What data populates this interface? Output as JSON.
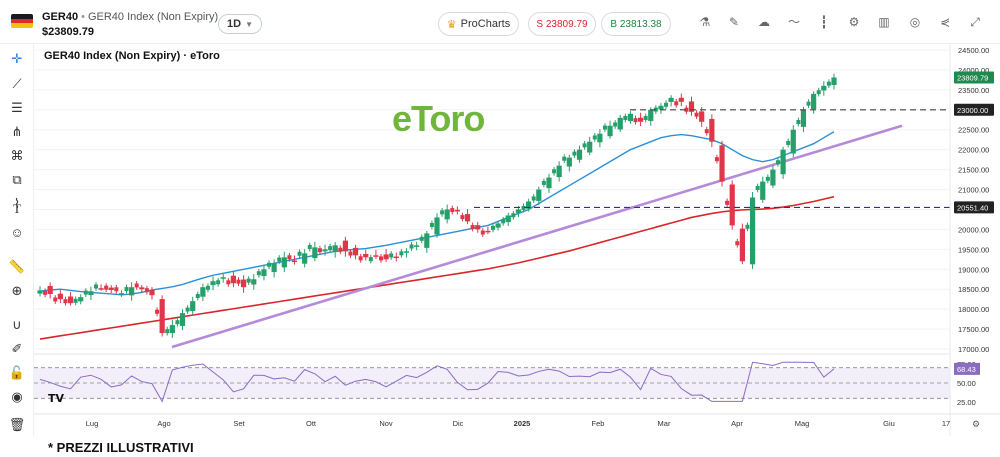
{
  "header": {
    "symbol": "GER40",
    "name": "GER40 Index (Non Expiry)",
    "price": "$23809.79",
    "interval": "1D",
    "prochart_label": "ProCharts",
    "sell_label": "S 23809.79",
    "buy_label": "B 23813.38"
  },
  "flag_colors": [
    "#1a1a1a",
    "#dd2a2a",
    "#f4c20d"
  ],
  "chart_title": "GER40 Index (Non Expiry) · eToro",
  "watermark": "eToro",
  "footer_note": "* PREZZI ILLUSTRATIVI",
  "colors": {
    "up": "#26a06a",
    "down": "#e0364a",
    "sma50": "#2d8fd6",
    "sma200": "#d8262b",
    "trendline": "#b58ad8",
    "rsi": "#8a6cc0",
    "dash": "#555577"
  },
  "chart_data": {
    "type": "candlestick",
    "price_axis": {
      "min": 17000,
      "max": 24500,
      "ticks": [
        "24500.00",
        "24000.00",
        "23500.00",
        "23000.00",
        "22500.00",
        "22000.00",
        "21500.00",
        "21000.00",
        "20500.00",
        "20000.00",
        "19500.00",
        "19000.00",
        "18500.00",
        "18000.00",
        "17500.00",
        "17000.00"
      ]
    },
    "price_labels": [
      {
        "label": "23809.79",
        "value": 23809.79,
        "bg": "#1f8a50"
      },
      {
        "label": "23000.00",
        "value": 23000,
        "bg": "#222"
      },
      {
        "label": "20551.40",
        "value": 20551.4,
        "bg": "#222"
      }
    ],
    "hlines": [
      {
        "value": 23000,
        "color": "#444444"
      },
      {
        "value": 20551.4,
        "color": "#3a2a8a"
      }
    ],
    "x_labels": [
      "Lug",
      "Ago",
      "Set",
      "Ott",
      "Nov",
      "Dic",
      "2025",
      "Feb",
      "Mar",
      "Apr",
      "Mag",
      "Giu",
      "17"
    ],
    "series_points": {
      "close": [
        18470,
        18380,
        18250,
        18150,
        18300,
        18450,
        18520,
        18480,
        18400,
        18550,
        18500,
        18350,
        17400,
        17600,
        17900,
        18200,
        18550,
        18700,
        18800,
        18650,
        18550,
        18750,
        19000,
        19150,
        19300,
        19200,
        19400,
        19550,
        19500,
        19600,
        19450,
        19350,
        19300,
        19350,
        19250,
        19300,
        19450,
        19600,
        19900,
        20300,
        20500,
        20450,
        20200,
        20000,
        19950,
        20150,
        20350,
        20500,
        20700,
        21000,
        21300,
        21600,
        21800,
        22000,
        22200,
        22400,
        22600,
        22800,
        22900,
        22700,
        23000,
        23100,
        23300,
        23200,
        22950,
        22700,
        22200,
        21200,
        20100,
        19200,
        20800,
        21200,
        21500,
        22000,
        22500,
        23000,
        23400,
        23600,
        23809.79
      ],
      "sma50": [
        18450,
        18480,
        18500,
        18470,
        18440,
        18420,
        18400,
        18380,
        18360,
        18380,
        18420,
        18480,
        18520,
        18560,
        18620,
        18700,
        18780,
        18850,
        18900,
        18950,
        19000,
        19050,
        19100,
        19150,
        19200,
        19250,
        19300,
        19350,
        19400,
        19450,
        19480,
        19500,
        19520,
        19560,
        19600,
        19650,
        19700,
        19750,
        19800,
        19850,
        19900,
        19950,
        20000,
        20050,
        20100,
        20200,
        20300,
        20400,
        20500,
        20650,
        20800,
        20950,
        21100,
        21250,
        21400,
        21550,
        21700,
        21850,
        22000,
        22100,
        22200,
        22300,
        22350,
        22380,
        22350,
        22300,
        22250,
        22150,
        22000,
        21850,
        21750,
        21700,
        21750,
        21850,
        21950,
        22050,
        22150,
        22300,
        22450
      ],
      "sma200": [
        17250,
        17290,
        17330,
        17370,
        17410,
        17450,
        17490,
        17530,
        17570,
        17610,
        17650,
        17690,
        17730,
        17770,
        17810,
        17850,
        17890,
        17930,
        17970,
        18010,
        18050,
        18090,
        18130,
        18170,
        18210,
        18250,
        18290,
        18330,
        18370,
        18410,
        18450,
        18490,
        18530,
        18570,
        18610,
        18650,
        18690,
        18730,
        18770,
        18810,
        18850,
        18890,
        18930,
        18970,
        19010,
        19060,
        19110,
        19160,
        19220,
        19280,
        19340,
        19400,
        19460,
        19530,
        19600,
        19670,
        19740,
        19810,
        19880,
        19950,
        20020,
        20090,
        20160,
        20230,
        20300,
        20350,
        20400,
        20440,
        20470,
        20490,
        20500,
        20510,
        20530,
        20560,
        20600,
        20650,
        20700,
        20760,
        20820
      ]
    },
    "rsi": {
      "levels": [
        70,
        50,
        30
      ],
      "labels": [
        "75.00",
        "68.43",
        "50.00",
        "25.00"
      ],
      "last": 68.43
    }
  }
}
